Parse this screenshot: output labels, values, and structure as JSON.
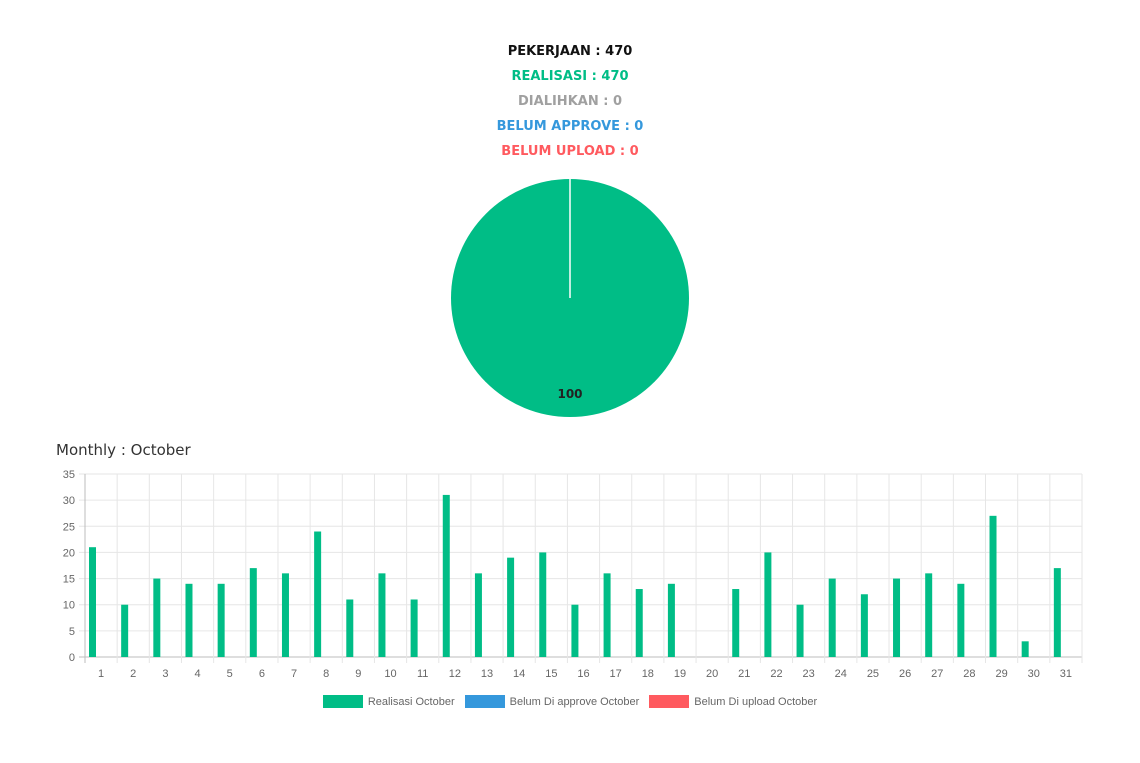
{
  "summary": {
    "pekerjaan": {
      "text": "PEKERJAAN : 470",
      "color": "#111111"
    },
    "realisasi": {
      "text": "REALISASI : 470",
      "color": "#00bd86"
    },
    "dialihkan": {
      "text": "DIALIHKAN : 0",
      "color": "#a0a0a0"
    },
    "belum_approve": {
      "text": "BELUM APPROVE : 0",
      "color": "#3598dc"
    },
    "belum_upload": {
      "text": "BELUM UPLOAD : 0",
      "color": "#ff5a5f"
    }
  },
  "chart_data": [
    {
      "type": "pie",
      "slices": [
        {
          "value": 100,
          "label": "100",
          "color": "#00bd86"
        }
      ]
    },
    {
      "type": "bar",
      "title": "Monthly : October",
      "categories": [
        "1",
        "2",
        "3",
        "4",
        "5",
        "6",
        "7",
        "8",
        "9",
        "10",
        "11",
        "12",
        "13",
        "14",
        "15",
        "16",
        "17",
        "18",
        "19",
        "20",
        "21",
        "22",
        "23",
        "24",
        "25",
        "26",
        "27",
        "28",
        "29",
        "30",
        "31"
      ],
      "series": [
        {
          "name": "Realisasi October",
          "color": "#00bd86",
          "values": [
            21,
            10,
            15,
            14,
            14,
            17,
            16,
            24,
            11,
            16,
            11,
            31,
            16,
            19,
            20,
            10,
            16,
            13,
            14,
            0,
            13,
            20,
            10,
            15,
            12,
            15,
            16,
            14,
            27,
            3,
            17
          ]
        },
        {
          "name": "Belum Di approve October",
          "color": "#3598dc",
          "values": [
            0,
            0,
            0,
            0,
            0,
            0,
            0,
            0,
            0,
            0,
            0,
            0,
            0,
            0,
            0,
            0,
            0,
            0,
            0,
            0,
            0,
            0,
            0,
            0,
            0,
            0,
            0,
            0,
            0,
            0,
            0
          ]
        },
        {
          "name": "Belum Di upload October",
          "color": "#ff5a5f",
          "values": [
            0,
            0,
            0,
            0,
            0,
            0,
            0,
            0,
            0,
            0,
            0,
            0,
            0,
            0,
            0,
            0,
            0,
            0,
            0,
            0,
            0,
            0,
            0,
            0,
            0,
            0,
            0,
            0,
            0,
            0,
            0
          ]
        }
      ],
      "ylim": [
        0,
        35
      ],
      "yticks": [
        "0",
        "5",
        "10",
        "15",
        "20",
        "25",
        "30",
        "35"
      ],
      "grid": true,
      "legend_position": "bottom"
    }
  ]
}
